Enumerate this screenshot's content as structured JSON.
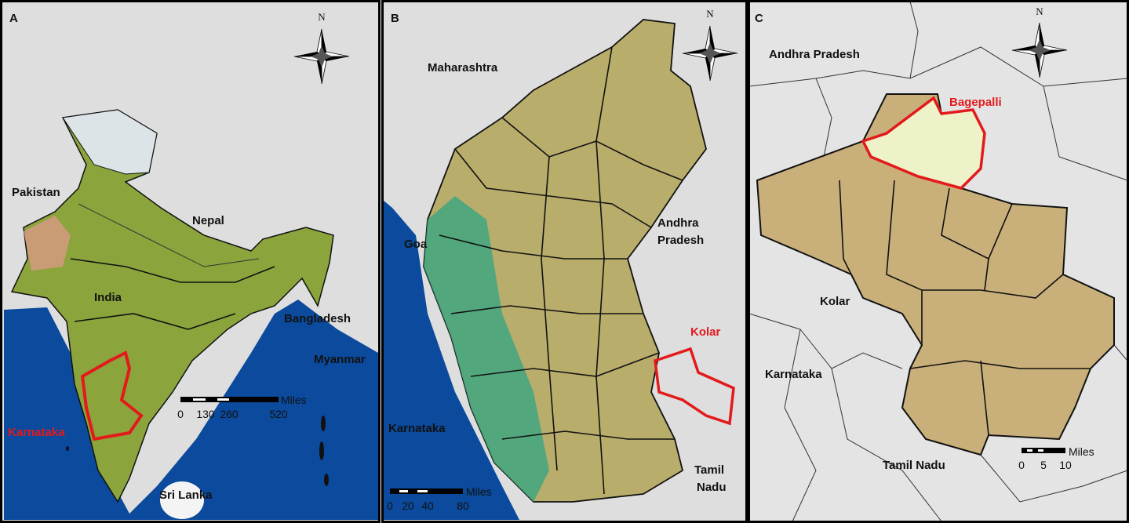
{
  "panels": [
    {
      "letter": "A",
      "north": "N",
      "labels": [
        "Pakistan",
        "Nepal",
        "India",
        "Bangladesh",
        "Myanmar",
        "Karnataka",
        "Sri Lanka"
      ],
      "scale": {
        "unit": "Miles",
        "ticks": [
          "0",
          "130",
          "260",
          "520"
        ]
      }
    },
    {
      "letter": "B",
      "north": "N",
      "labels": [
        "Maharashtra",
        [
          "Andhra",
          "Pradesh"
        ],
        "Goa",
        "Kolar",
        "Karnataka",
        [
          "Tamil",
          "Nadu"
        ]
      ],
      "scale": {
        "unit": "Miles",
        "ticks": [
          "0",
          "20",
          "40",
          "80"
        ]
      }
    },
    {
      "letter": "C",
      "north": "N",
      "labels": [
        "Andhra Pradesh",
        "Bagepalli",
        "Kolar",
        "Karnataka",
        "Tamil Nadu"
      ],
      "scale": {
        "unit": "Miles",
        "ticks": [
          "0",
          "5",
          "10"
        ]
      }
    }
  ]
}
